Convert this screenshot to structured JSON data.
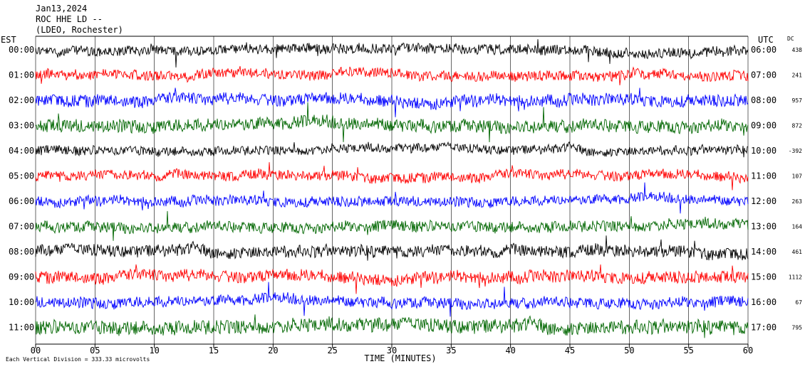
{
  "header": {
    "date": "Jan13,2024",
    "station": "ROC HHE LD --",
    "institution": "(LDEO, Rochester)"
  },
  "left_tz": "EST",
  "right_tz": "UTC",
  "dc_header": "DC",
  "footer_note": "Each Vertical Division =  333.33 microvolts",
  "chart_data": {
    "type": "line",
    "title": "Jan13,2024 ROC HHE LD -- (LDEO, Rochester)",
    "xlabel": "TIME (MINUTES)",
    "ylabel": "",
    "xlim": [
      0,
      60
    ],
    "x_ticks": [
      "00",
      "05",
      "10",
      "15",
      "20",
      "25",
      "30",
      "35",
      "40",
      "45",
      "50",
      "55",
      "60"
    ],
    "trace_colors": [
      "#000000",
      "#ff0000",
      "#0000ff",
      "#006600"
    ],
    "grid": true,
    "rows": [
      {
        "est": "00:00",
        "utc": "06:00",
        "dc": "438",
        "color": "#000000",
        "amplitude": 1.0
      },
      {
        "est": "01:00",
        "utc": "07:00",
        "dc": "241",
        "color": "#ff0000",
        "amplitude": 1.0
      },
      {
        "est": "02:00",
        "utc": "08:00",
        "dc": "957",
        "color": "#0000ff",
        "amplitude": 1.2
      },
      {
        "est": "03:00",
        "utc": "09:00",
        "dc": "872",
        "color": "#006600",
        "amplitude": 1.3
      },
      {
        "est": "04:00",
        "utc": "10:00",
        "dc": "-392",
        "color": "#000000",
        "amplitude": 0.9
      },
      {
        "est": "05:00",
        "utc": "11:00",
        "dc": "107",
        "color": "#ff0000",
        "amplitude": 1.0
      },
      {
        "est": "06:00",
        "utc": "12:00",
        "dc": "263",
        "color": "#0000ff",
        "amplitude": 1.0
      },
      {
        "est": "07:00",
        "utc": "13:00",
        "dc": "164",
        "color": "#006600",
        "amplitude": 1.1
      },
      {
        "est": "08:00",
        "utc": "14:00",
        "dc": "461",
        "color": "#000000",
        "amplitude": 1.2
      },
      {
        "est": "09:00",
        "utc": "15:00",
        "dc": "1112",
        "color": "#ff0000",
        "amplitude": 1.2
      },
      {
        "est": "10:00",
        "utc": "16:00",
        "dc": "67",
        "color": "#0000ff",
        "amplitude": 1.1
      },
      {
        "est": "11:00",
        "utc": "17:00",
        "dc": "795",
        "color": "#006600",
        "amplitude": 1.4
      }
    ]
  }
}
